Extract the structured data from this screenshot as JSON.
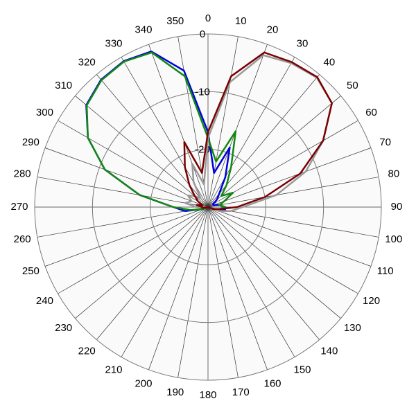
{
  "chart_data": {
    "type": "polar",
    "theta": [
      0,
      10,
      20,
      30,
      40,
      50,
      60,
      70,
      80,
      90,
      100,
      110,
      120,
      130,
      140,
      150,
      160,
      170,
      180,
      190,
      200,
      210,
      220,
      230,
      240,
      250,
      260,
      270,
      280,
      290,
      300,
      310,
      320,
      330,
      340,
      350
    ],
    "rlim": [
      -30,
      0
    ],
    "rticks": [
      -20,
      -10,
      0
    ],
    "grid": true,
    "series": [
      {
        "color": "#0000dd",
        "values": [
          -17,
          -24,
          -19,
          -24,
          -27,
          -28,
          -29,
          -29,
          -28,
          -27,
          -27,
          -29,
          -30,
          -30,
          -30,
          -30,
          -30,
          -30,
          -30,
          -30,
          -30,
          -30,
          -30,
          -30,
          -30,
          -29,
          -26,
          -24,
          -18,
          -11,
          -6,
          -2.5,
          -1.2,
          -0.8,
          -1.3,
          -6
        ]
      },
      {
        "color": "#118811",
        "values": [
          -18,
          -22,
          -16,
          -22,
          -25,
          -27,
          -25,
          -27,
          -28,
          -27,
          -28,
          -29,
          -30,
          -30,
          -30,
          -30,
          -30,
          -30,
          -30,
          -30,
          -30,
          -30,
          -30,
          -30,
          -30,
          -29,
          -27,
          -24,
          -18,
          -11,
          -6,
          -2.6,
          -1.3,
          -0.9,
          -1.5,
          -7
        ]
      },
      {
        "color": "#999999",
        "values": [
          -18,
          -8,
          -2,
          -1.2,
          -0.7,
          -2,
          -7,
          -12,
          -18,
          -24,
          -26,
          -28,
          -30,
          -30,
          -30,
          -30,
          -30,
          -30,
          -30,
          -30,
          -30,
          -30,
          -30,
          -30,
          -30,
          -30,
          -30,
          -28,
          -26,
          -27,
          -26,
          -27,
          -28,
          -25,
          -22,
          -26
        ]
      },
      {
        "color": "#7a0000",
        "values": [
          -17,
          -7,
          -1.5,
          -1,
          -0.6,
          -2,
          -7,
          -13,
          -20,
          -25,
          -28,
          -29,
          -30,
          -30,
          -30,
          -30,
          -30,
          -30,
          -30,
          -30,
          -30,
          -30,
          -30,
          -30,
          -30,
          -30,
          -29,
          -29,
          -28,
          -29,
          -28,
          -27,
          -25,
          -22,
          -18,
          -24
        ]
      }
    ]
  }
}
